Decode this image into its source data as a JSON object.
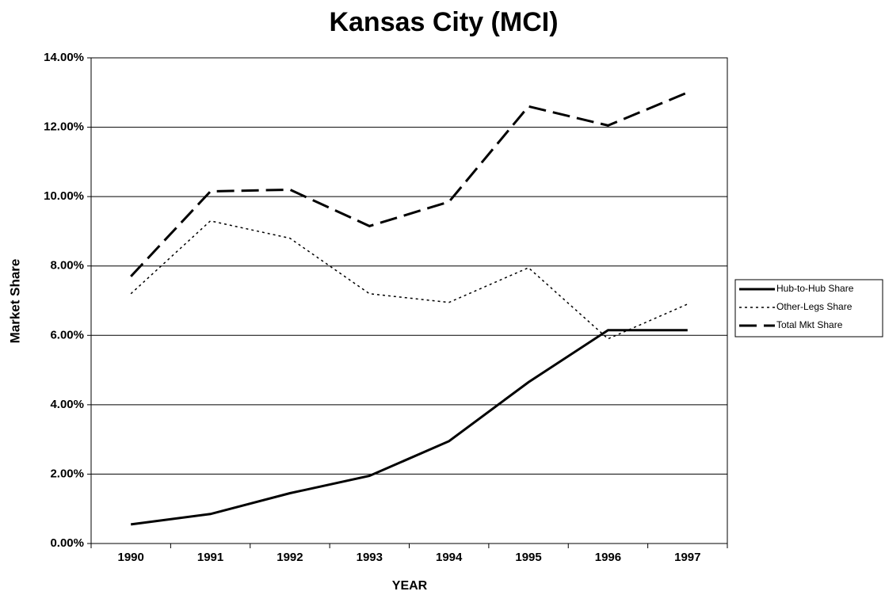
{
  "chart_data": {
    "type": "line",
    "title": "Kansas City (MCI)",
    "x_label": "YEAR",
    "y_label": "Market Share",
    "categories": [
      "1990",
      "1991",
      "1992",
      "1993",
      "1994",
      "1995",
      "1996",
      "1997"
    ],
    "series": [
      {
        "name": "Hub-to-Hub Share",
        "color": "#000000",
        "style": "solid",
        "values": [
          0.55,
          0.85,
          1.45,
          1.95,
          2.95,
          4.65,
          6.15,
          6.15
        ]
      },
      {
        "name": "Other-Legs Share",
        "color": "#000000",
        "style": "dotted",
        "values": [
          7.2,
          9.3,
          8.8,
          7.2,
          6.95,
          7.95,
          5.9,
          6.9
        ]
      },
      {
        "name": "Total Mkt Share",
        "color": "#000000",
        "style": "dashed",
        "values": [
          7.7,
          10.15,
          10.2,
          9.15,
          9.85,
          12.6,
          12.05,
          13.0
        ]
      }
    ],
    "ylim": [
      0,
      14
    ],
    "yticks": [
      {
        "value": 0,
        "label": "0.00%"
      },
      {
        "value": 2,
        "label": "2.00%"
      },
      {
        "value": 4,
        "label": "4.00%"
      },
      {
        "value": 6,
        "label": "6.00%"
      },
      {
        "value": 8,
        "label": "8.00%"
      },
      {
        "value": 10,
        "label": "10.00%"
      },
      {
        "value": 12,
        "label": "12.00%"
      },
      {
        "value": 14,
        "label": "14.00%"
      }
    ],
    "grid": true,
    "legend": "right"
  }
}
